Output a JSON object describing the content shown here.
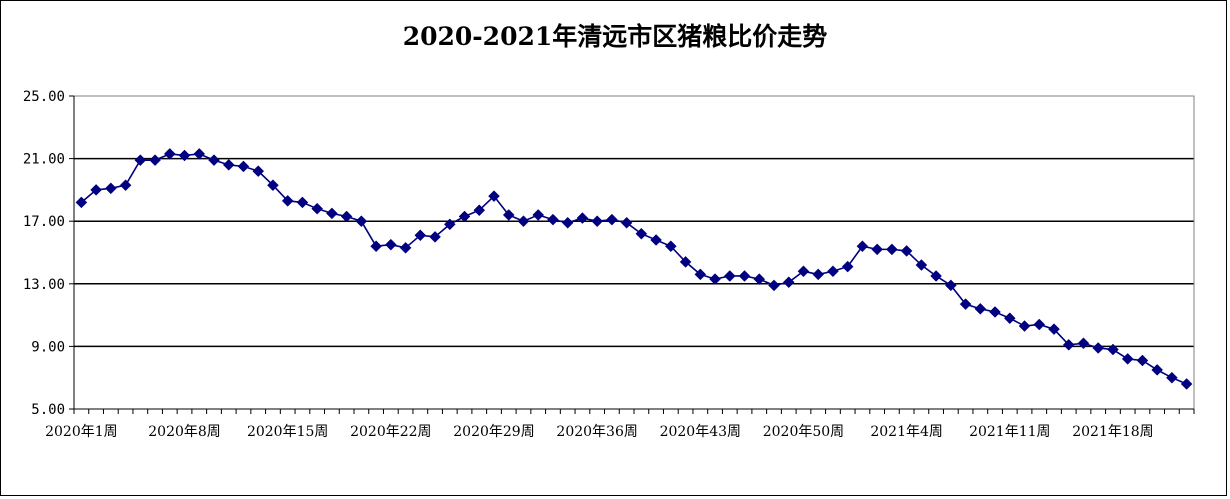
{
  "chart_data": {
    "type": "line",
    "title": "2020-2021年清远市区猪粮比价走势",
    "xlabel": "",
    "ylabel": "",
    "ylim": [
      5,
      25
    ],
    "yticks": [
      5,
      9,
      13,
      17,
      21,
      25
    ],
    "ytick_labels": [
      "5.00",
      "9.00",
      "13.00",
      "17.00",
      "21.00",
      "25.00"
    ],
    "grid": "horizontal",
    "xtick_labels": [
      "2020年1周",
      "2020年8周",
      "2020年15周",
      "2020年22周",
      "2020年29周",
      "2020年36周",
      "2020年43周",
      "2020年50周",
      "2021年4周",
      "2021年11周",
      "2021年18周"
    ],
    "xtick_every": 7,
    "series": [
      {
        "color": "#000080",
        "marker": "diamond",
        "values": [
          18.2,
          19.0,
          19.1,
          19.3,
          20.9,
          20.9,
          21.3,
          21.2,
          21.3,
          20.9,
          20.6,
          20.5,
          20.2,
          19.3,
          18.3,
          18.2,
          17.8,
          17.5,
          17.3,
          17.0,
          15.4,
          15.5,
          15.3,
          16.1,
          16.0,
          16.8,
          17.3,
          17.7,
          18.6,
          17.4,
          17.0,
          17.4,
          17.1,
          16.9,
          17.2,
          17.0,
          17.1,
          16.9,
          16.2,
          15.8,
          15.4,
          14.4,
          13.6,
          13.3,
          13.5,
          13.5,
          13.3,
          12.9,
          13.1,
          13.8,
          13.6,
          13.8,
          14.1,
          15.4,
          15.2,
          15.2,
          15.1,
          14.2,
          13.5,
          12.9,
          11.7,
          11.4,
          11.2,
          10.8,
          10.3,
          10.4,
          10.1,
          9.1,
          9.2,
          8.9,
          8.8,
          8.2,
          8.1,
          7.5,
          7.0,
          6.6
        ]
      }
    ]
  }
}
